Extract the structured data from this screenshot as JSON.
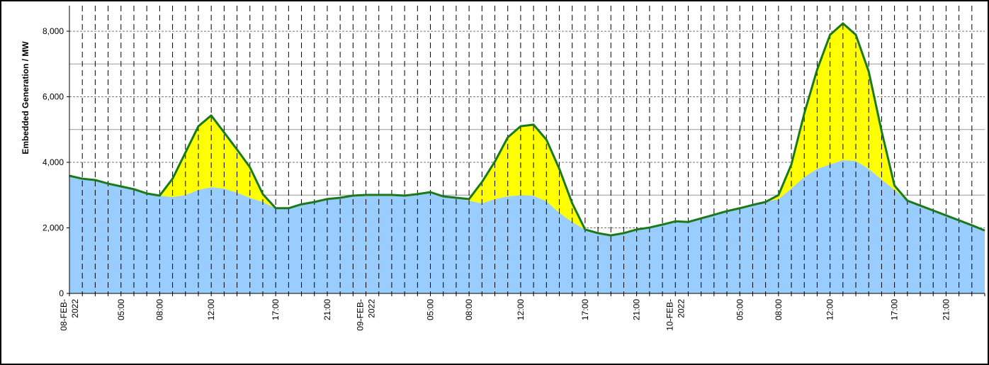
{
  "chart_data": {
    "type": "stacked_area",
    "y_label": "Embedded Generation / MW",
    "categories": [
      "08-FEB-2022",
      null,
      null,
      null,
      "05:00",
      null,
      null,
      "08:00",
      null,
      null,
      null,
      "12:00",
      null,
      null,
      null,
      null,
      "17:00",
      null,
      null,
      null,
      "21:00",
      null,
      null,
      "09-FEB-2022",
      null,
      null,
      null,
      null,
      "05:00",
      null,
      null,
      "08:00",
      null,
      null,
      null,
      "12:00",
      null,
      null,
      null,
      null,
      "17:00",
      null,
      null,
      null,
      "21:00",
      null,
      null,
      "10-FEB-2022",
      null,
      null,
      null,
      null,
      "05:00",
      null,
      null,
      "08:00",
      null,
      null,
      null,
      "12:00",
      null,
      null,
      null,
      null,
      "17:00",
      null,
      null,
      null,
      "21:00",
      null,
      null,
      null
    ],
    "series": [
      {
        "color": "#99ccff",
        "values": [
          3590,
          3500,
          3460,
          3350,
          3265,
          3180,
          3050,
          2985,
          2940,
          3000,
          3160,
          3240,
          3200,
          3070,
          2920,
          2790,
          2600,
          2600,
          2720,
          2790,
          2880,
          2920,
          2985,
          3005,
          3005,
          3005,
          2985,
          3030,
          3090,
          2960,
          2920,
          2830,
          2750,
          2880,
          2960,
          3000,
          2980,
          2810,
          2460,
          2180,
          1950,
          1840,
          1770,
          1840,
          1950,
          2010,
          2100,
          2200,
          2180,
          2290,
          2400,
          2510,
          2600,
          2700,
          2790,
          2880,
          3200,
          3550,
          3800,
          3935,
          4065,
          4040,
          3800,
          3480,
          3160,
          2830,
          2680,
          2530,
          2380,
          2230,
          2080,
          1920
        ]
      },
      {
        "color": "#ffff00",
        "line_color": "#1a7a1a",
        "values": [
          0,
          0,
          0,
          0,
          0,
          0,
          0,
          0,
          560,
          1300,
          1940,
          2190,
          1710,
          1320,
          930,
          240,
          0,
          0,
          0,
          0,
          0,
          0,
          0,
          0,
          0,
          0,
          0,
          0,
          0,
          0,
          0,
          50,
          650,
          1140,
          1800,
          2100,
          2170,
          1880,
          1340,
          570,
          0,
          0,
          0,
          0,
          0,
          0,
          0,
          0,
          0,
          0,
          0,
          0,
          0,
          0,
          0,
          120,
          735,
          1940,
          3030,
          3955,
          4175,
          3850,
          2970,
          1470,
          130,
          0,
          0,
          0,
          0,
          0,
          0,
          0
        ]
      }
    ],
    "ylim": [
      0,
      8780
    ],
    "yticks": [
      0,
      {
        "value": 2000,
        "label": "2,000"
      },
      {
        "value": 4000,
        "label": "4,000"
      },
      {
        "value": 6000,
        "label": "6,000"
      },
      {
        "value": 8000,
        "label": "8,000"
      }
    ],
    "yminor": [
      3000,
      5000,
      7000
    ],
    "grid": true
  }
}
